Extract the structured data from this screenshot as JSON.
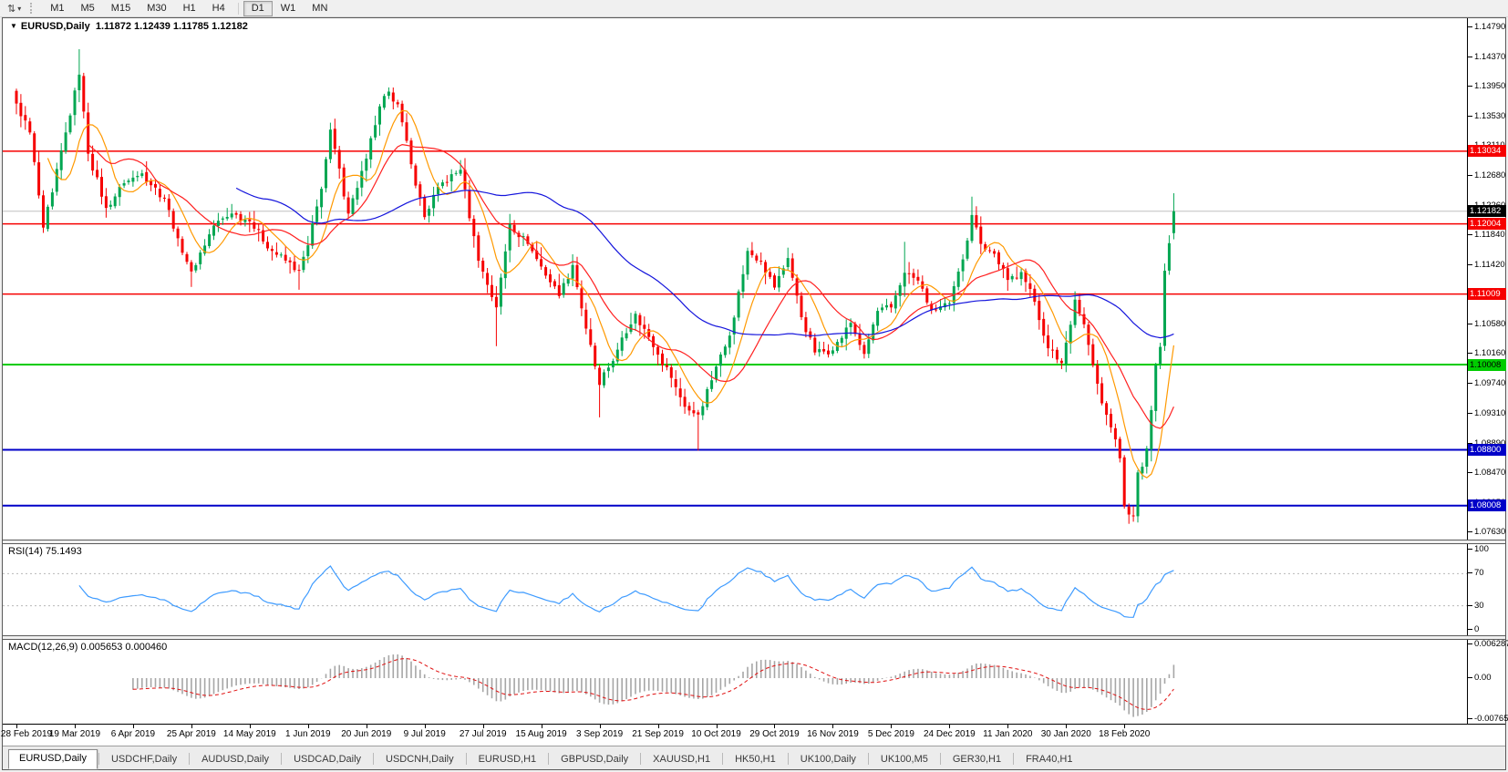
{
  "toolbar": {
    "icon": "chart-shift-icon",
    "timeframes": [
      "M1",
      "M5",
      "M15",
      "M30",
      "H1",
      "H4",
      "D1",
      "W1",
      "MN"
    ],
    "active_timeframe": "D1"
  },
  "header": {
    "symbol": "EURUSD,Daily",
    "quotes": "1.11872 1.12439 1.11785 1.12182"
  },
  "rsi_panel": {
    "label": "RSI(14) 75.1493",
    "value": 75.1493,
    "levels": [
      70,
      30
    ],
    "y_ticks": [
      "100",
      "70",
      "30",
      "0"
    ]
  },
  "macd_panel": {
    "label": "MACD(12,26,9) 0.005653 0.000460",
    "macd_value": 0.005653,
    "signal_value": 0.00046,
    "y_ticks": [
      "0.006287",
      "0.00",
      "-0.007658"
    ]
  },
  "x_axis": {
    "dates": [
      "28 Feb 2019",
      "19 Mar 2019",
      "6 Apr 2019",
      "25 Apr 2019",
      "14 May 2019",
      "1 Jun 2019",
      "20 Jun 2019",
      "9 Jul 2019",
      "27 Jul 2019",
      "15 Aug 2019",
      "3 Sep 2019",
      "21 Sep 2019",
      "10 Oct 2019",
      "29 Oct 2019",
      "16 Nov 2019",
      "5 Dec 2019",
      "24 Dec 2019",
      "11 Jan 2020",
      "30 Jan 2020",
      "18 Feb 2020"
    ],
    "bars_per_label": 13
  },
  "tabs": {
    "items": [
      "EURUSD,Daily",
      "USDCHF,Daily",
      "AUDUSD,Daily",
      "USDCAD,Daily",
      "USDCNH,Daily",
      "EURUSD,H1",
      "GBPUSD,Daily",
      "XAUUSD,H1",
      "HK50,H1",
      "UK100,Daily",
      "UK100,M5",
      "GER30,H1",
      "FRA40,H1"
    ],
    "active": "EURUSD,Daily"
  },
  "colors": {
    "up": "#00A651",
    "down": "#F60000",
    "ma_fast": "#FF9900",
    "ma_mid": "#FF2020",
    "ma_slow": "#1414DC",
    "rsi": "#3E9BFF",
    "rsi_level": "#b8b8b8",
    "macd_hist": "#A6A6A6",
    "macd_signal": "#E01010",
    "current_line": "#c0c0c0",
    "current_badge_bg": "#000000",
    "current_badge_fg": "#ffffff"
  },
  "chart_data": {
    "type": "candlestick",
    "symbol": "EURUSD",
    "timeframe": "Daily",
    "bars": 259,
    "y_range": [
      1.0754,
      1.1492
    ],
    "y_ticks": [
      "1.14790",
      "1.14370",
      "1.13950",
      "1.13530",
      "1.13110",
      "1.12680",
      "1.12260",
      "1.11840",
      "1.11420",
      "1.11000",
      "1.10580",
      "1.10160",
      "1.09740",
      "1.09310",
      "1.08890",
      "1.08470",
      "1.08050",
      "1.07630"
    ],
    "current_price": {
      "value": 1.12182,
      "label": "1.12182"
    },
    "last_bar": {
      "open": 1.11872,
      "high": 1.12439,
      "low": 1.11785,
      "close": 1.12182
    },
    "h_lines": [
      {
        "value": 1.13034,
        "label": "1.13034",
        "color": "#F60000",
        "bg": "#F60000",
        "fg": "#ffffff",
        "w": 1.5
      },
      {
        "value": 1.12004,
        "label": "1.12004",
        "color": "#F60000",
        "bg": "#F60000",
        "fg": "#ffffff",
        "w": 1.5
      },
      {
        "value": 1.11009,
        "label": "1.11009",
        "color": "#F60000",
        "bg": "#F60000",
        "fg": "#ffffff",
        "w": 1.5
      },
      {
        "value": 1.10008,
        "label": "1.10008",
        "color": "#00CC00",
        "bg": "#00CC00",
        "fg": "#000000",
        "w": 2
      },
      {
        "value": 1.088,
        "label": "1.08800",
        "color": "#0000C8",
        "bg": "#0000C8",
        "fg": "#ffffff",
        "w": 2
      },
      {
        "value": 1.08008,
        "label": "1.08008",
        "color": "#0000C8",
        "bg": "#0000C8",
        "fg": "#ffffff",
        "w": 2
      }
    ],
    "indicators": {
      "moving_averages": [
        {
          "period": 8,
          "color_key": "ma_fast"
        },
        {
          "period": 17,
          "color_key": "ma_mid"
        },
        {
          "period": 50,
          "color_key": "ma_slow"
        }
      ],
      "rsi_period": 14,
      "macd_params": [
        12,
        26,
        9
      ]
    },
    "close_anchors": [
      [
        0,
        1.1371
      ],
      [
        3,
        1.133
      ],
      [
        6,
        1.1195
      ],
      [
        8,
        1.1245
      ],
      [
        11,
        1.133
      ],
      [
        14,
        1.1412
      ],
      [
        16,
        1.13
      ],
      [
        20,
        1.1223
      ],
      [
        24,
        1.1258
      ],
      [
        28,
        1.1272
      ],
      [
        33,
        1.1236
      ],
      [
        36,
        1.118
      ],
      [
        39,
        1.1133
      ],
      [
        44,
        1.1198
      ],
      [
        48,
        1.1215
      ],
      [
        52,
        1.1204
      ],
      [
        57,
        1.1162
      ],
      [
        63,
        1.1134
      ],
      [
        65,
        1.117
      ],
      [
        68,
        1.125
      ],
      [
        70,
        1.1334
      ],
      [
        74,
        1.1215
      ],
      [
        78,
        1.1293
      ],
      [
        81,
        1.1367
      ],
      [
        83,
        1.1388
      ],
      [
        85,
        1.137
      ],
      [
        88,
        1.1285
      ],
      [
        91,
        1.121
      ],
      [
        94,
        1.1253
      ],
      [
        99,
        1.1277
      ],
      [
        103,
        1.1148
      ],
      [
        107,
        1.1082
      ],
      [
        110,
        1.12
      ],
      [
        114,
        1.1172
      ],
      [
        117,
        1.114
      ],
      [
        121,
        1.1098
      ],
      [
        124,
        1.1142
      ],
      [
        127,
        1.1052
      ],
      [
        130,
        1.0972
      ],
      [
        134,
        1.1022
      ],
      [
        138,
        1.1073
      ],
      [
        141,
        1.104
      ],
      [
        143,
        1.1015
      ],
      [
        146,
        1.0982
      ],
      [
        149,
        1.0941
      ],
      [
        152,
        1.093
      ],
      [
        156,
        1.0998
      ],
      [
        159,
        1.1042
      ],
      [
        163,
        1.1162
      ],
      [
        166,
        1.1148
      ],
      [
        169,
        1.111
      ],
      [
        172,
        1.1152
      ],
      [
        175,
        1.1068
      ],
      [
        178,
        1.1018
      ],
      [
        182,
        1.1021
      ],
      [
        186,
        1.106
      ],
      [
        189,
        1.1016
      ],
      [
        192,
        1.1077
      ],
      [
        195,
        1.1082
      ],
      [
        198,
        1.1131
      ],
      [
        201,
        1.112
      ],
      [
        204,
        1.1078
      ],
      [
        208,
        1.1088
      ],
      [
        211,
        1.115
      ],
      [
        213,
        1.1213
      ],
      [
        215,
        1.1172
      ],
      [
        218,
        1.1158
      ],
      [
        221,
        1.1121
      ],
      [
        224,
        1.1132
      ],
      [
        227,
        1.109
      ],
      [
        230,
        1.1024
      ],
      [
        233,
        1.1003
      ],
      [
        234,
        1.1032
      ],
      [
        236,
        1.1093
      ],
      [
        238,
        1.1058
      ],
      [
        240,
        1.1
      ],
      [
        242,
        1.0946
      ],
      [
        244,
        1.0912
      ],
      [
        246,
        1.0868
      ],
      [
        247,
        1.08
      ],
      [
        249,
        1.0786
      ],
      [
        250,
        1.0848
      ],
      [
        251,
        1.0856
      ],
      [
        252,
        1.0882
      ],
      [
        254,
        1.1
      ],
      [
        255,
        1.1026
      ],
      [
        256,
        1.1134
      ],
      [
        257,
        1.1173
      ],
      [
        258,
        1.1218
      ]
    ],
    "wick_anchors": [
      [
        14,
        "h",
        1.1448
      ],
      [
        39,
        "l",
        1.1111
      ],
      [
        63,
        "l",
        1.1107
      ],
      [
        107,
        "l",
        1.1027
      ],
      [
        130,
        "l",
        1.0926
      ],
      [
        152,
        "l",
        1.0879
      ],
      [
        198,
        "h",
        1.1175
      ],
      [
        213,
        "h",
        1.1239
      ],
      [
        249,
        "l",
        1.0778
      ],
      [
        258,
        "h",
        1.12439
      ]
    ]
  }
}
